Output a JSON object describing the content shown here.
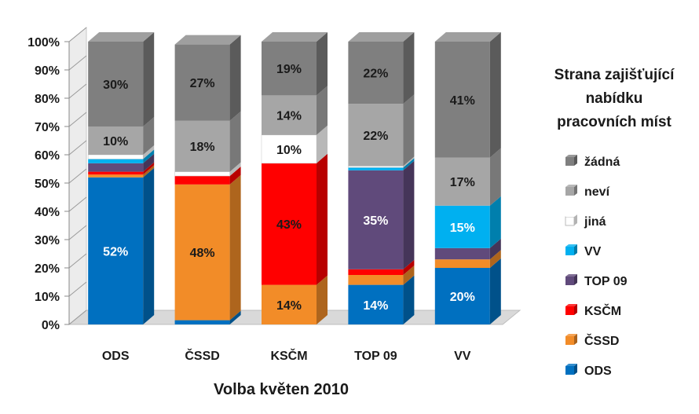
{
  "chart_data": {
    "type": "bar",
    "stacked": true,
    "three_d": true,
    "xlabel": "Volba květen 2010",
    "ylabel": "",
    "ylim": [
      0,
      100
    ],
    "y_ticks": [
      "0%",
      "10%",
      "20%",
      "30%",
      "40%",
      "50%",
      "60%",
      "70%",
      "80%",
      "90%",
      "100%"
    ],
    "categories": [
      "ODS",
      "ČSSD",
      "KSČM",
      "TOP 09",
      "VV"
    ],
    "legend_title": "Strana zajišťující nabídku pracovních míst",
    "legend_position": "right",
    "series": [
      {
        "name": "ODS",
        "color": "#0070C0",
        "values": [
          52,
          1.5,
          0,
          14,
          20
        ],
        "labels": [
          "52%",
          "",
          "",
          "14%",
          "20%"
        ]
      },
      {
        "name": "ČSSD",
        "color": "#F28C28",
        "values": [
          1,
          48,
          14,
          3.5,
          3
        ],
        "labels": [
          "",
          "48%",
          "14%",
          "",
          ""
        ]
      },
      {
        "name": "KSČM",
        "color": "#FF0000",
        "values": [
          1,
          3,
          43,
          2,
          0
        ],
        "labels": [
          "",
          "",
          "43%",
          "",
          ""
        ]
      },
      {
        "name": "TOP 09",
        "color": "#604A7B",
        "values": [
          3,
          0,
          0,
          35,
          4
        ],
        "labels": [
          "",
          "",
          "",
          "35%",
          ""
        ]
      },
      {
        "name": "VV",
        "color": "#00B0F0",
        "values": [
          1.5,
          0,
          0,
          1,
          15
        ],
        "labels": [
          "",
          "",
          "",
          "",
          "15%"
        ]
      },
      {
        "name": "jiná",
        "color": "#FFFFFF",
        "values": [
          1.5,
          1.5,
          10,
          0.5,
          0
        ],
        "labels": [
          "",
          "",
          "10%",
          "",
          ""
        ]
      },
      {
        "name": "neví",
        "color": "#A6A6A6",
        "values": [
          10,
          18,
          14,
          22,
          17
        ],
        "labels": [
          "10%",
          "18%",
          "14%",
          "22%",
          "17%"
        ]
      },
      {
        "name": "žádná",
        "color": "#7F7F7F",
        "values": [
          30,
          27,
          19,
          22,
          41
        ],
        "labels": [
          "30%",
          "27%",
          "19%",
          "22%",
          "41%"
        ]
      }
    ]
  }
}
